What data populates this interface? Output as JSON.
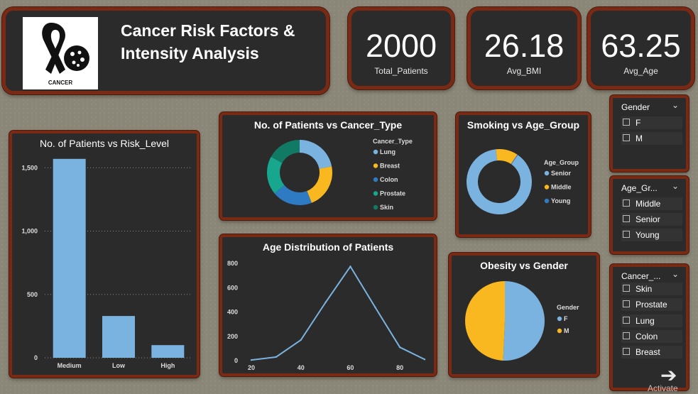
{
  "header": {
    "title_line1": "Cancer Risk Factors &",
    "title_line2": "Intensity  Analysis",
    "logo_caption": "CANCER"
  },
  "kpis": [
    {
      "value": "2000",
      "label": "Total_Patients"
    },
    {
      "value": "26.18",
      "label": "Avg_BMI"
    },
    {
      "value": "63.25",
      "label": "Avg_Age"
    }
  ],
  "colors": {
    "background": "#8b8778",
    "card": "#2b2b2b",
    "card_border": "#7a2a14",
    "blue_light": "#7ab3e0",
    "yellow": "#f9b81f",
    "blue_mid": "#2e7bc4",
    "teal": "#17a78e",
    "teal_dark": "#117a65"
  },
  "slicers": {
    "gender": {
      "title": "Gender",
      "items": [
        "F",
        "M"
      ]
    },
    "age_group": {
      "title": "Age_Gr...",
      "items": [
        "Middle",
        "Senior",
        "Young"
      ]
    },
    "cancer_type": {
      "title": "Cancer_...",
      "items": [
        "Skin",
        "Prostate",
        "Lung",
        "Colon",
        "Breast"
      ]
    }
  },
  "watermark": "Activate",
  "chart_data": [
    {
      "type": "bar",
      "title": "No. of Patients vs Risk_Level",
      "categories": [
        "Medium",
        "Low",
        "High"
      ],
      "values": [
        1570,
        330,
        100
      ],
      "yticks": [
        "0",
        "500",
        "1,000",
        "1,500"
      ],
      "ytick_values": [
        0,
        500,
        1000,
        1500
      ],
      "ylim": [
        0,
        1580
      ],
      "grid": true,
      "color": "#7ab3e0"
    },
    {
      "type": "pie",
      "donut": true,
      "title": "No. of Patients vs Cancer_Type",
      "legend_title": "Cancer_Type",
      "legend_position": "right",
      "categories": [
        "Lung",
        "Breast",
        "Colon",
        "Prostate",
        "Skin"
      ],
      "values": [
        440,
        440,
        400,
        380,
        340
      ],
      "colors": [
        "#7ab3e0",
        "#f9b81f",
        "#2e7bc4",
        "#17a78e",
        "#117a65"
      ]
    },
    {
      "type": "pie",
      "donut": true,
      "title": "Smoking vs Age_Group",
      "legend_title": "Age_Group",
      "legend_position": "right",
      "categories": [
        "Senior",
        "Middle",
        "Young"
      ],
      "values": [
        89,
        11,
        0.3
      ],
      "colors": [
        "#7ab3e0",
        "#f9b81f",
        "#2e7bc4"
      ]
    },
    {
      "type": "line",
      "title": "Age Distribution of Patients",
      "x": [
        20,
        30,
        40,
        50,
        60,
        70,
        80,
        90
      ],
      "y": [
        5,
        30,
        170,
        480,
        775,
        440,
        110,
        10
      ],
      "xticks": [
        20,
        40,
        60,
        80
      ],
      "yticks": [
        0,
        200,
        400,
        600,
        800
      ],
      "xlim": [
        18,
        92
      ],
      "ylim": [
        0,
        830
      ],
      "color": "#7ab3e0"
    },
    {
      "type": "pie",
      "title": "Obesity vs Gender",
      "legend_title": "Gender",
      "legend_position": "right",
      "categories": [
        "F",
        "M"
      ],
      "values": [
        50.7,
        49.3
      ],
      "colors": [
        "#7ab3e0",
        "#f9b81f"
      ]
    }
  ]
}
